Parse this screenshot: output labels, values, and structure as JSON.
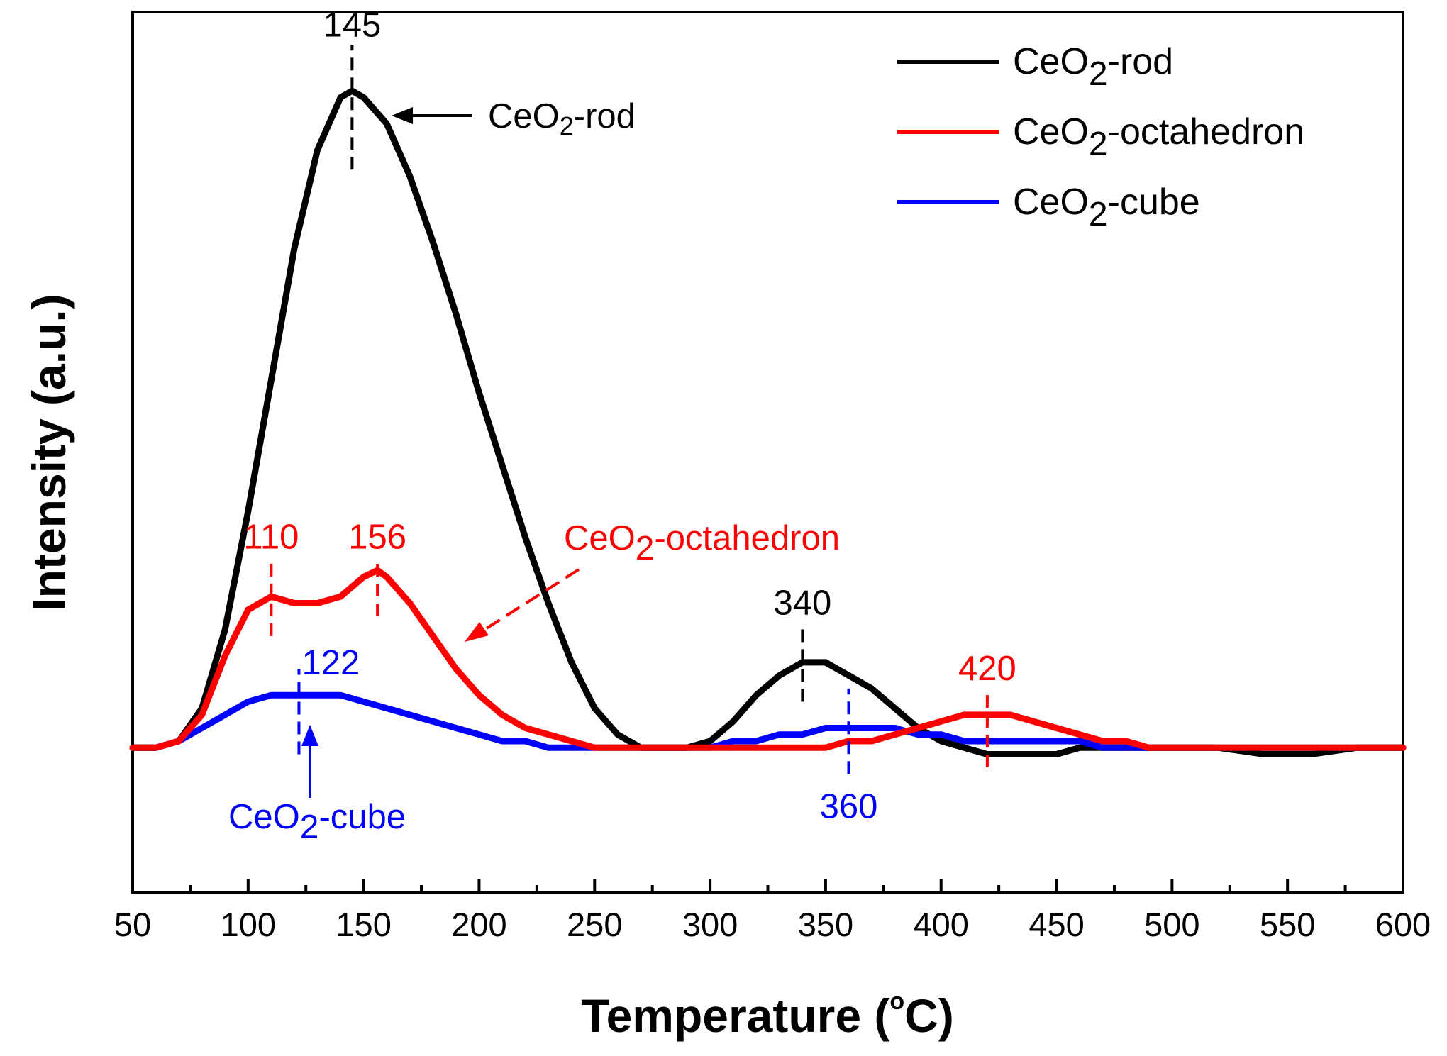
{
  "chart_data": {
    "type": "line",
    "title": "",
    "xlabel": "Temperature (",
    "xlabel_degree": "o",
    "xlabel_unit": "C)",
    "ylabel": "Intensity (a.u.)",
    "xlim": [
      50,
      600
    ],
    "ylim": [
      -0.22,
      1.12
    ],
    "x_ticks": [
      50,
      100,
      150,
      200,
      250,
      300,
      350,
      400,
      450,
      500,
      550,
      600
    ],
    "x_tick_labels": [
      "50",
      "100",
      "150",
      "200",
      "250",
      "300",
      "350",
      "400",
      "450",
      "500",
      "550",
      "600"
    ],
    "y_ticks_shown": false,
    "series": [
      {
        "name": "CeO2-rod",
        "label_base": "CeO",
        "label_sub": "2",
        "label_rest": "-rod",
        "color": "#000000",
        "x": [
          50,
          60,
          70,
          80,
          90,
          100,
          110,
          120,
          130,
          140,
          145,
          150,
          160,
          170,
          180,
          190,
          200,
          210,
          220,
          230,
          240,
          250,
          260,
          270,
          280,
          290,
          300,
          310,
          320,
          330,
          340,
          350,
          360,
          370,
          380,
          390,
          400,
          410,
          420,
          430,
          440,
          450,
          460,
          470,
          480,
          490,
          500,
          520,
          540,
          560,
          580,
          600
        ],
        "y": [
          0.0,
          0.0,
          0.01,
          0.06,
          0.18,
          0.36,
          0.56,
          0.76,
          0.91,
          0.99,
          1.0,
          0.99,
          0.95,
          0.87,
          0.77,
          0.66,
          0.54,
          0.43,
          0.32,
          0.22,
          0.13,
          0.06,
          0.02,
          0.0,
          0.0,
          0.0,
          0.01,
          0.04,
          0.08,
          0.11,
          0.13,
          0.13,
          0.11,
          0.09,
          0.06,
          0.03,
          0.01,
          0.0,
          -0.01,
          -0.01,
          -0.01,
          -0.01,
          0.0,
          0.0,
          0.0,
          0.0,
          0.0,
          0.0,
          -0.01,
          -0.01,
          0.0,
          0.0
        ]
      },
      {
        "name": "CeO2-octahedron",
        "label_base": "CeO",
        "label_sub": "2",
        "label_rest": "-octahedron",
        "color": "#ff0000",
        "x": [
          50,
          60,
          70,
          80,
          90,
          100,
          110,
          120,
          130,
          140,
          150,
          156,
          160,
          170,
          180,
          190,
          200,
          210,
          220,
          230,
          240,
          250,
          260,
          270,
          280,
          290,
          300,
          310,
          320,
          330,
          340,
          350,
          360,
          370,
          380,
          390,
          400,
          410,
          420,
          430,
          440,
          450,
          460,
          470,
          480,
          490,
          500,
          520,
          540,
          560,
          580,
          600
        ],
        "y": [
          0.0,
          0.0,
          0.01,
          0.05,
          0.14,
          0.21,
          0.23,
          0.22,
          0.22,
          0.23,
          0.26,
          0.27,
          0.26,
          0.22,
          0.17,
          0.12,
          0.08,
          0.05,
          0.03,
          0.02,
          0.01,
          0.0,
          0.0,
          0.0,
          0.0,
          0.0,
          0.0,
          0.0,
          0.0,
          0.0,
          0.0,
          0.0,
          0.01,
          0.01,
          0.02,
          0.03,
          0.04,
          0.05,
          0.05,
          0.05,
          0.04,
          0.03,
          0.02,
          0.01,
          0.01,
          0.0,
          0.0,
          0.0,
          0.0,
          0.0,
          0.0,
          0.0
        ]
      },
      {
        "name": "CeO2-cube",
        "label_base": "CeO",
        "label_sub": "2",
        "label_rest": "-cube",
        "color": "#0000ff",
        "x": [
          50,
          60,
          70,
          80,
          90,
          100,
          110,
          122,
          130,
          140,
          150,
          160,
          170,
          180,
          190,
          200,
          210,
          220,
          230,
          240,
          250,
          260,
          270,
          280,
          290,
          300,
          310,
          320,
          330,
          340,
          350,
          360,
          370,
          380,
          390,
          400,
          410,
          420,
          430,
          440,
          450,
          460,
          470,
          480,
          490,
          500,
          520,
          540,
          560,
          580,
          600
        ],
        "y": [
          0.0,
          0.0,
          0.01,
          0.03,
          0.05,
          0.07,
          0.08,
          0.08,
          0.08,
          0.08,
          0.07,
          0.06,
          0.05,
          0.04,
          0.03,
          0.02,
          0.01,
          0.01,
          0.0,
          0.0,
          0.0,
          0.0,
          0.0,
          0.0,
          0.0,
          0.0,
          0.01,
          0.01,
          0.02,
          0.02,
          0.03,
          0.03,
          0.03,
          0.03,
          0.02,
          0.02,
          0.01,
          0.01,
          0.01,
          0.01,
          0.01,
          0.01,
          0.0,
          0.0,
          0.0,
          0.0,
          0.0,
          0.0,
          0.0,
          0.0,
          0.0
        ]
      }
    ],
    "peak_markers": [
      {
        "series": "CeO2-rod",
        "x": 145,
        "label": "145",
        "color": "#000000",
        "line_from": 0.88,
        "line_to": 1.07
      },
      {
        "series": "CeO2-rod",
        "x": 340,
        "label": "340",
        "color": "#000000",
        "line_from": 0.07,
        "line_to": 0.19
      },
      {
        "series": "CeO2-octahedron",
        "x": 110,
        "label": "110",
        "color": "#ff0000",
        "line_from": 0.17,
        "line_to": 0.29
      },
      {
        "series": "CeO2-octahedron",
        "x": 156,
        "label": "156",
        "color": "#ff0000",
        "line_from": 0.2,
        "line_to": 0.29
      },
      {
        "series": "CeO2-octahedron",
        "x": 420,
        "label": "420",
        "color": "#ff0000",
        "line_from": -0.03,
        "line_to": 0.09
      },
      {
        "series": "CeO2-cube",
        "x": 122,
        "label": "122",
        "color": "#0000ff",
        "line_from": -0.01,
        "line_to": 0.12
      },
      {
        "series": "CeO2-cube",
        "x": 360,
        "label": "360",
        "color": "#0000ff",
        "line_from": -0.04,
        "line_to": 0.09
      }
    ],
    "callouts": [
      {
        "name": "rod",
        "base": "CeO",
        "sub": "2",
        "rest": "-rod",
        "color": "#000000"
      },
      {
        "name": "octahedron",
        "base": "CeO",
        "sub": "2",
        "rest": "-octahedron",
        "color": "#ff0000"
      },
      {
        "name": "cube",
        "base": "CeO",
        "sub": "2",
        "rest": "-cube",
        "color": "#0000ff"
      }
    ],
    "legend_position": "top-right"
  }
}
